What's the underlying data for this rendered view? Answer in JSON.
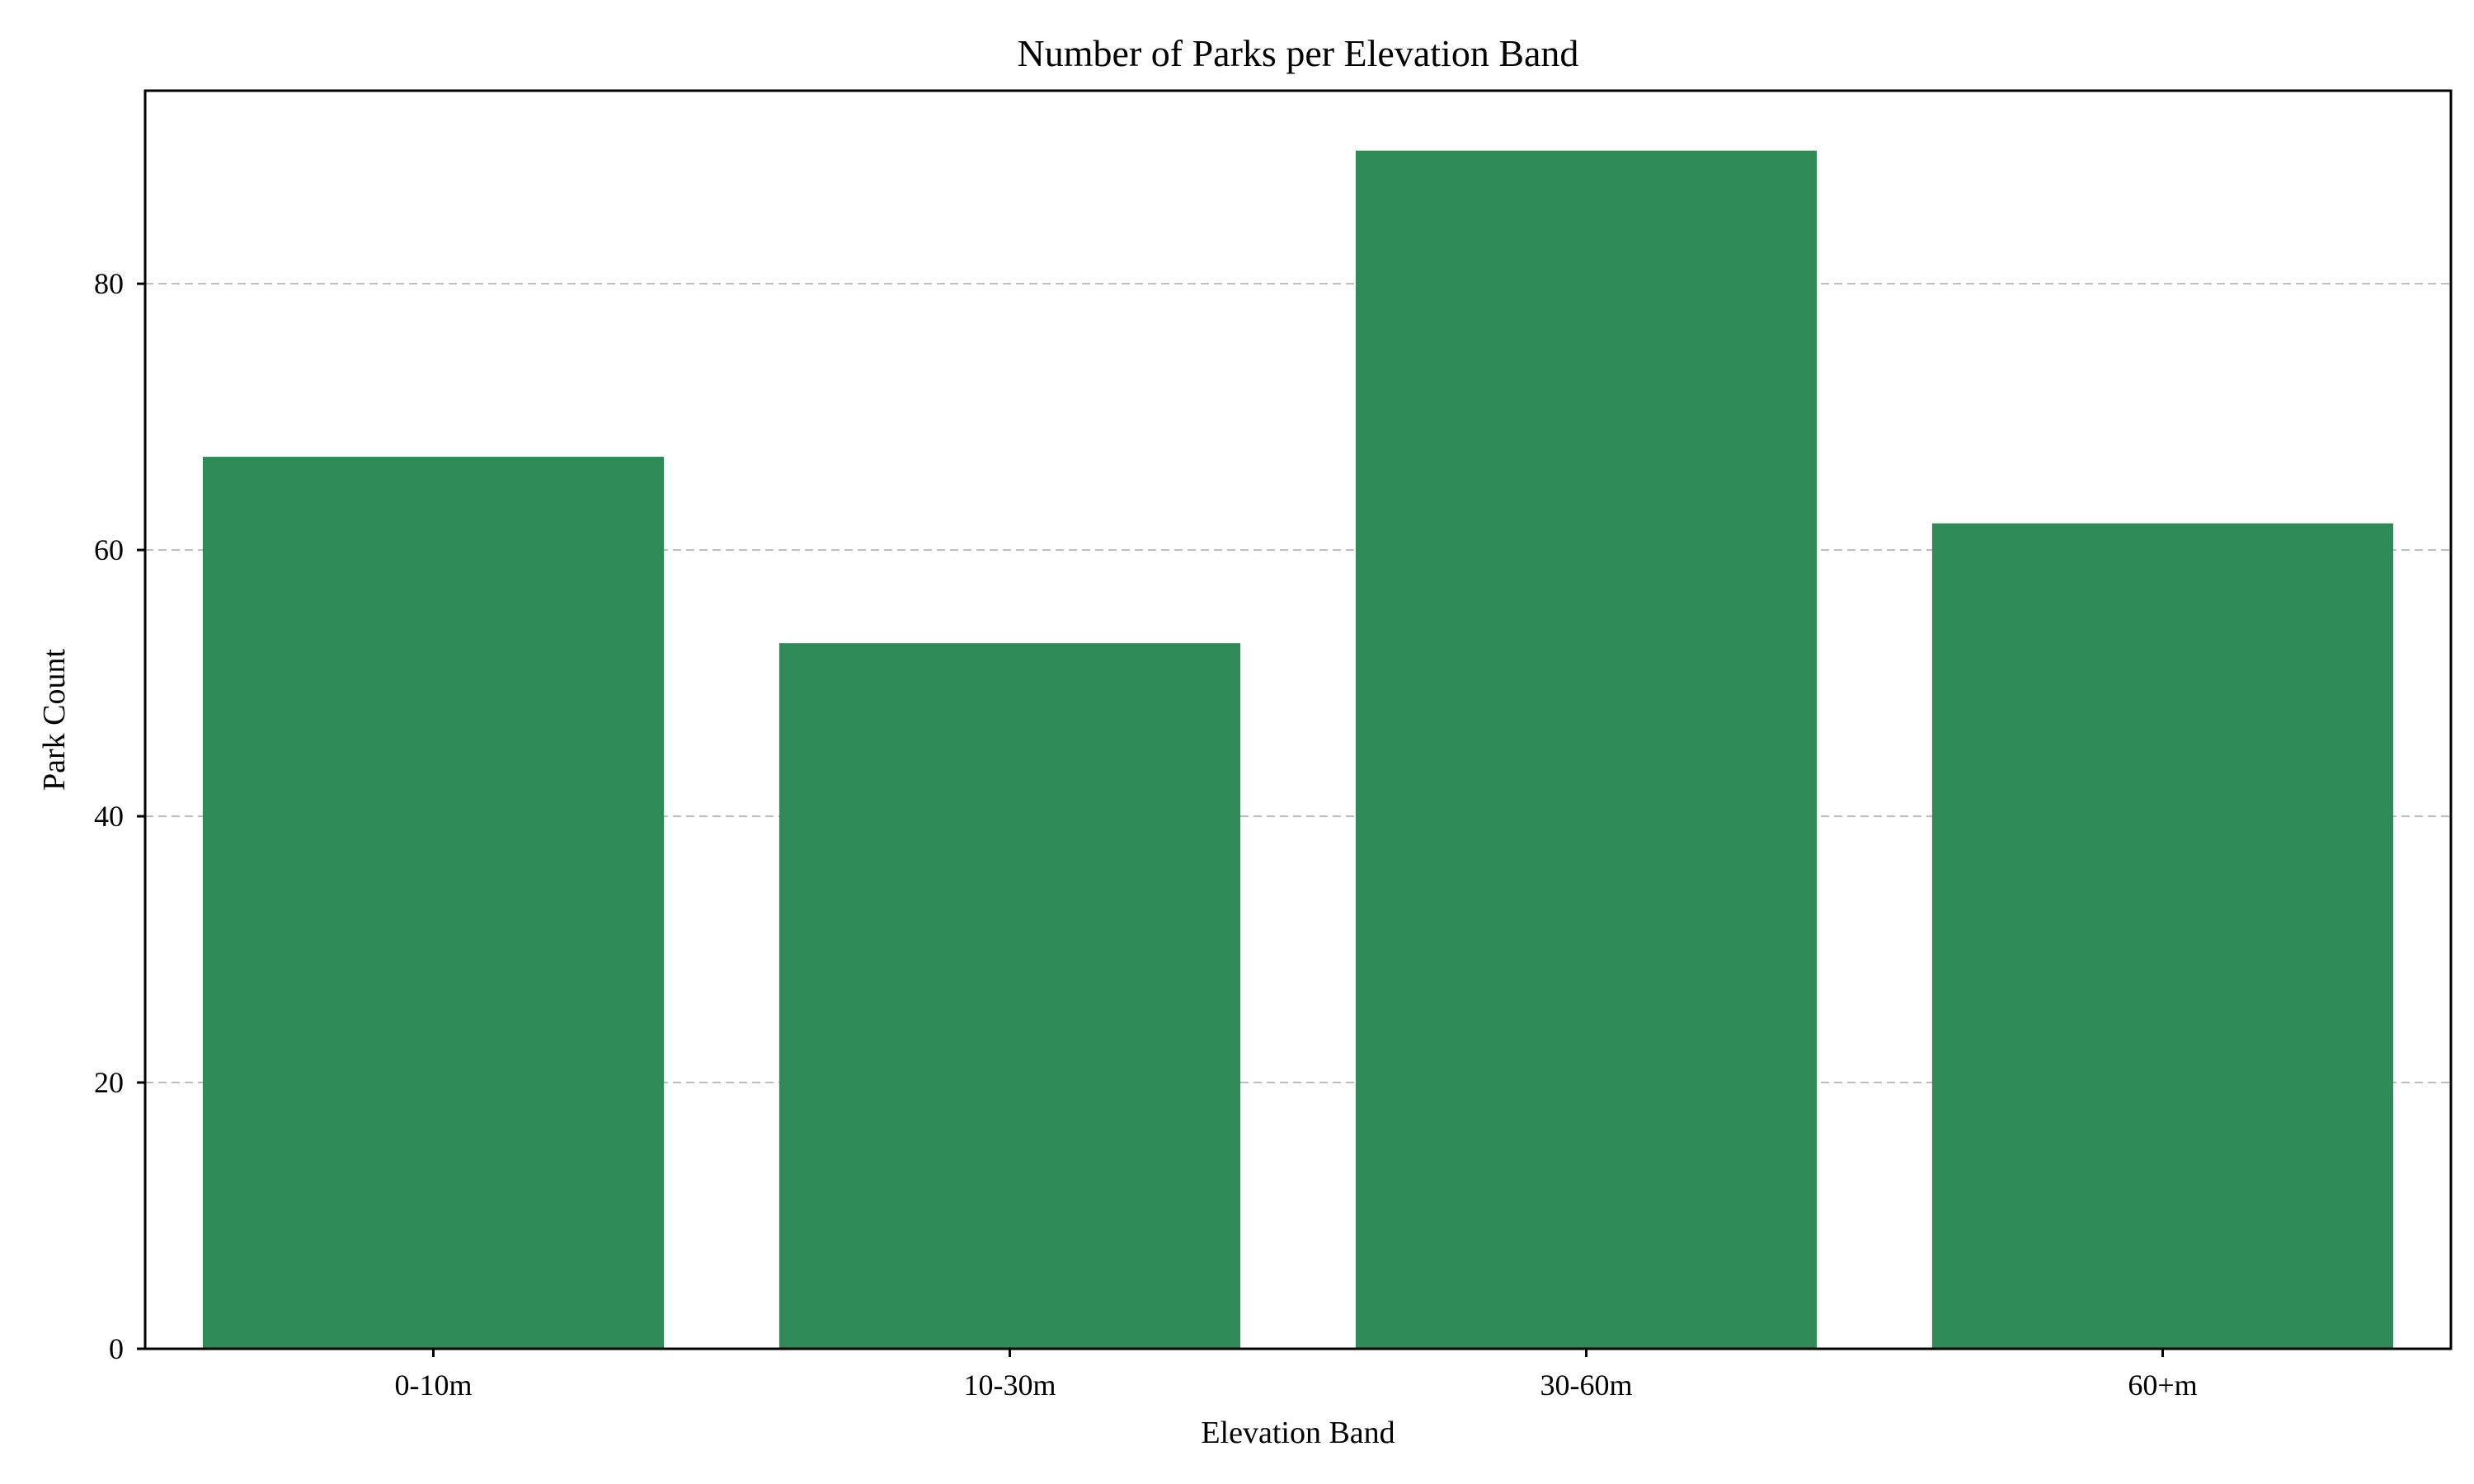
{
  "chart_data": {
    "type": "bar",
    "title": "Number of Parks per Elevation Band",
    "xlabel": "Elevation Band",
    "ylabel": "Park Count",
    "categories": [
      "0-10m",
      "10-30m",
      "30-60m",
      "60+m"
    ],
    "values": [
      67,
      53,
      90,
      62
    ],
    "ylim": [
      0,
      94.5
    ],
    "yticks": [
      0,
      20,
      40,
      60,
      80
    ],
    "grid": "y-dashed",
    "legend": "none",
    "colors": {
      "bar": "#2e8b57",
      "grid": "#bbbbbb",
      "axis": "#000000"
    }
  }
}
